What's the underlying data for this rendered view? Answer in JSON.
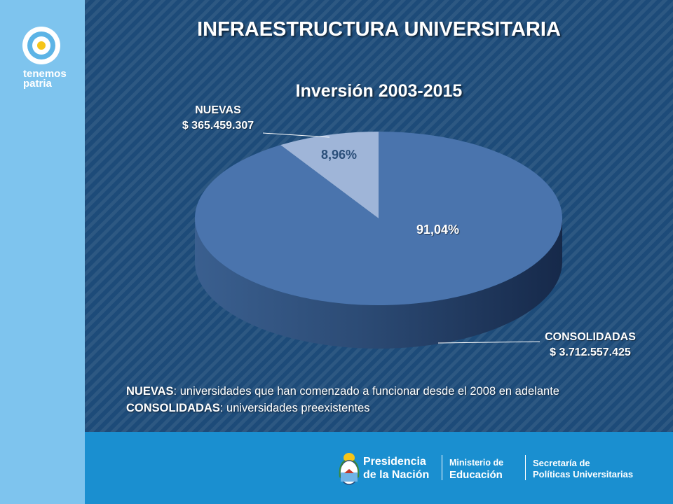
{
  "branding": {
    "logo_text_line1": "tenemos",
    "logo_text_line2": "patria"
  },
  "header": {
    "title": "INFRAESTRUCTURA UNIVERSITARIA"
  },
  "chart_data": {
    "type": "pie",
    "title": "Inversión 2003-2015",
    "slices": [
      {
        "name": "NUEVAS",
        "amount_label": "$ 365.459.307",
        "value": 8.96,
        "percent_label": "8,96%",
        "color": "#9fb5d8"
      },
      {
        "name": "CONSOLIDADAS",
        "amount_label": "$ 3.712.557.425",
        "value": 91.04,
        "percent_label": "91,04%",
        "color": "#4a74ad"
      }
    ],
    "three_d": true
  },
  "notes": [
    {
      "term": "NUEVAS",
      "text": ": universidades que han comenzado a funcionar desde el 2008 en adelante"
    },
    {
      "term": "CONSOLIDADAS",
      "text": ": universidades preexistentes"
    }
  ],
  "footer": {
    "presidencia_line1": "Presidencia",
    "presidencia_line2": "de la Nación",
    "ministerio_line1": "Ministerio de",
    "ministerio_line2": "Educación",
    "secretaria_line1": "Secretaría de",
    "secretaria_line2": "Políticas Universitarias"
  },
  "colors": {
    "background": "#1d4b79",
    "sidebar": "#7ec4ee",
    "footer": "#1a8fd0",
    "slice_nuevas": "#9fb5d8",
    "slice_consolidadas": "#4a74ad"
  }
}
